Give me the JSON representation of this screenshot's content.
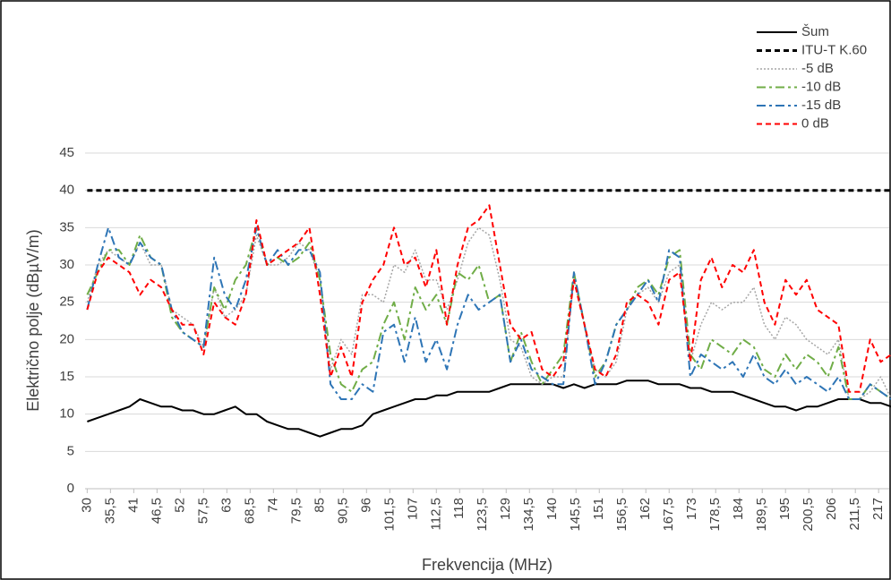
{
  "chart_data": {
    "type": "line",
    "x_label": "Frekvencija (MHz)",
    "y_label": "Električno polje (dBµV/m)",
    "xlim": [
      29.5,
      219.5
    ],
    "ylim": [
      0,
      45
    ],
    "yticks": [
      0,
      5,
      10,
      15,
      20,
      25,
      30,
      35,
      40,
      45
    ],
    "xticks": [
      30,
      {
        "value": 35.5,
        "label": "35,5"
      },
      41,
      {
        "value": 46.5,
        "label": "46,5"
      },
      52,
      {
        "value": 57.5,
        "label": "57,5"
      },
      63,
      {
        "value": 68.5,
        "label": "68,5"
      },
      74,
      {
        "value": 79.5,
        "label": "79,5"
      },
      85,
      {
        "value": 90.5,
        "label": "90,5"
      },
      96,
      {
        "value": 101.5,
        "label": "101,5"
      },
      107,
      {
        "value": 112.5,
        "label": "112,5"
      },
      118,
      {
        "value": 123.5,
        "label": "123,5"
      },
      129,
      {
        "value": 134.5,
        "label": "134,5"
      },
      140,
      {
        "value": 145.5,
        "label": "145,5"
      },
      151,
      {
        "value": 156.5,
        "label": "156,5"
      },
      162,
      {
        "value": 167.5,
        "label": "167,5"
      },
      173,
      {
        "value": 178.5,
        "label": "178,5"
      },
      184,
      {
        "value": 189.5,
        "label": "189,5"
      },
      195,
      {
        "value": 200.5,
        "label": "200,5"
      },
      206,
      {
        "value": 211.5,
        "label": "211,5"
      },
      217
    ],
    "grid": true,
    "legend_position": "top-right",
    "x": [
      30,
      32.5,
      35,
      37.5,
      40,
      42.5,
      45,
      47.5,
      50,
      52.5,
      55,
      57.5,
      60,
      62.5,
      65,
      67.5,
      70,
      72.5,
      75,
      77.5,
      80,
      82.5,
      85,
      87.5,
      90,
      92.5,
      95,
      97.5,
      100,
      102.5,
      105,
      107.5,
      110,
      112.5,
      115,
      117.5,
      120,
      122.5,
      125,
      127.5,
      130,
      132.5,
      135,
      137.5,
      140,
      142.5,
      145,
      147.5,
      150,
      152.5,
      155,
      157.5,
      160,
      162.5,
      165,
      167.5,
      170,
      172.5,
      175,
      177.5,
      180,
      182.5,
      185,
      187.5,
      190,
      192.5,
      195,
      197.5,
      200,
      202.5,
      205,
      207.5,
      210,
      212.5,
      215,
      217.5,
      220
    ],
    "series": [
      {
        "name": "Šum",
        "color": "#000000",
        "style": "solid",
        "width": 2,
        "values": [
          9,
          9.5,
          10,
          10.5,
          11,
          12,
          11.5,
          11,
          11,
          10.5,
          10.5,
          10,
          10,
          10.5,
          11,
          10,
          10,
          9,
          8.5,
          8,
          8,
          7.5,
          7,
          7.5,
          8,
          8,
          8.5,
          10,
          10.5,
          11,
          11.5,
          12,
          12,
          12.5,
          12.5,
          13,
          13,
          13,
          13,
          13.5,
          14,
          14,
          14,
          14,
          14,
          13.5,
          14,
          13.5,
          14,
          14,
          14,
          14.5,
          14.5,
          14.5,
          14,
          14,
          14,
          13.5,
          13.5,
          13,
          13,
          13,
          12.5,
          12,
          11.5,
          11,
          11,
          10.5,
          11,
          11,
          11.5,
          12,
          12,
          12,
          11.5,
          11.5,
          11
        ]
      },
      {
        "name": "ITU-T K.60",
        "color": "#000000",
        "style": "dashed",
        "width": 3,
        "x": [
          30,
          220
        ],
        "values": [
          40,
          40
        ]
      },
      {
        "name": "-5 dB",
        "color": "#a6a6a6",
        "style": "dotted",
        "width": 1.5,
        "values": [
          25,
          30,
          32,
          31,
          30,
          33,
          30,
          30,
          24,
          23,
          22,
          19,
          27,
          23,
          24,
          26,
          34,
          30,
          30,
          31,
          33,
          32,
          28,
          16,
          20,
          18,
          26,
          26,
          25,
          30,
          29,
          32,
          28,
          28,
          24,
          28,
          33,
          35,
          34,
          28,
          20,
          19,
          15,
          14,
          15,
          15,
          28,
          22,
          16,
          15,
          17,
          24,
          26,
          27,
          25,
          29,
          30,
          17,
          22,
          25,
          24,
          25,
          25,
          27,
          22,
          20,
          23,
          22,
          20,
          19,
          18,
          20,
          12,
          12,
          13,
          15,
          12
        ]
      },
      {
        "name": "-10 dB",
        "color": "#70ad47",
        "style": "dashdot",
        "width": 2,
        "values": [
          26,
          29,
          32,
          32,
          30,
          34,
          31,
          30,
          23,
          21,
          20,
          19,
          27,
          24,
          28,
          30,
          35,
          30,
          31,
          30,
          31,
          33,
          28,
          18,
          14,
          13,
          16,
          17,
          22,
          25,
          20,
          27,
          24,
          26,
          22,
          29,
          28,
          30,
          25,
          26,
          17,
          21,
          17,
          14,
          16,
          18,
          29,
          22,
          15,
          17,
          22,
          24,
          27,
          28,
          26,
          31,
          32,
          18,
          16,
          20,
          19,
          18,
          20,
          19,
          16,
          15,
          18,
          16,
          18,
          17,
          15,
          19,
          12,
          12,
          14,
          13,
          12
        ]
      },
      {
        "name": "-15 dB",
        "color": "#2e75b6",
        "style": "dashdot",
        "width": 2,
        "values": [
          24,
          30,
          35,
          31,
          30,
          33,
          31,
          30,
          24,
          21,
          20,
          19,
          31,
          26,
          24,
          28,
          35,
          30,
          32,
          30,
          32,
          32,
          29,
          14,
          12,
          12,
          14,
          13,
          21,
          22,
          17,
          23,
          17,
          20,
          16,
          22,
          26,
          24,
          25,
          26,
          17,
          20,
          16,
          15,
          14,
          14,
          29,
          22,
          14,
          17,
          22,
          24,
          26,
          28,
          25,
          32,
          31,
          15,
          18,
          17,
          16,
          17,
          15,
          18,
          15,
          14,
          16,
          14,
          15,
          14,
          13,
          15,
          12,
          12,
          14,
          13,
          12
        ]
      },
      {
        "name": "0 dB",
        "color": "#ff0000",
        "style": "dashed",
        "width": 2,
        "values": [
          24,
          29,
          31,
          30,
          29,
          26,
          28,
          27,
          24,
          22,
          22,
          18,
          25,
          23,
          22,
          26,
          36,
          30,
          31,
          32,
          33,
          35,
          26,
          15,
          19,
          15,
          25,
          28,
          30,
          35,
          30,
          31,
          27,
          32,
          22,
          30,
          35,
          36,
          38,
          30,
          22,
          20,
          21,
          16,
          15,
          17,
          28,
          22,
          16,
          15,
          18,
          25,
          26,
          25,
          22,
          28,
          29,
          17,
          28,
          31,
          27,
          30,
          29,
          32,
          25,
          22,
          28,
          26,
          28,
          24,
          23,
          22,
          13,
          13,
          20,
          17,
          18
        ]
      }
    ]
  }
}
